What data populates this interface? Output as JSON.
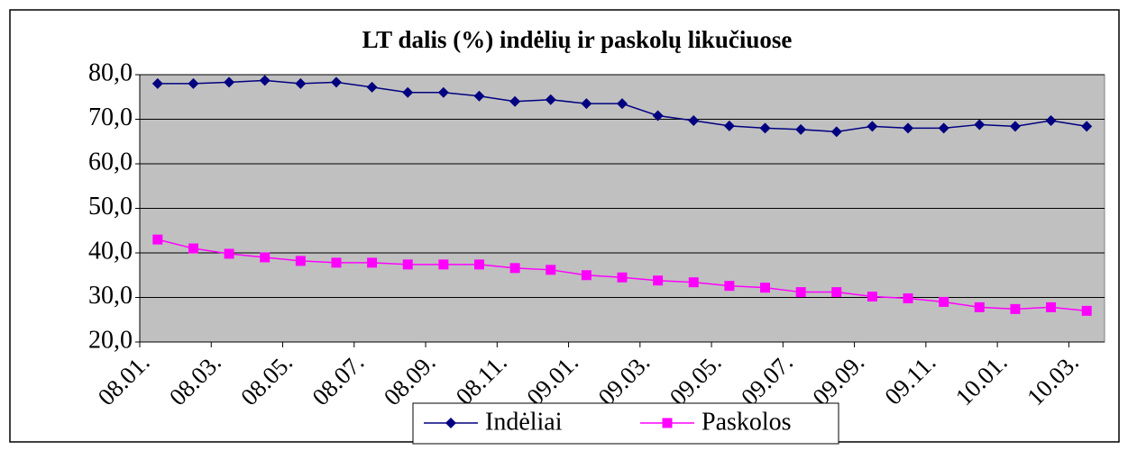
{
  "chart_data": {
    "type": "line",
    "title": "LT dalis (%) indėlių ir paskolų likučiuose",
    "categories": [
      "08.01.",
      null,
      "08.03.",
      null,
      "08.05.",
      null,
      "08.07.",
      null,
      "08.09.",
      null,
      "08.11.",
      null,
      "09.01.",
      null,
      "09.03.",
      null,
      "09.05.",
      null,
      "09.07.",
      null,
      "09.09.",
      null,
      "09.11.",
      null,
      "10.01.",
      null,
      "10.03."
    ],
    "series": [
      {
        "name": "Indėliai",
        "color": "#000080",
        "marker": "diamond",
        "values": [
          78,
          78,
          78.3,
          78.7,
          78,
          78.3,
          77.2,
          76,
          76,
          75.2,
          74,
          74.4,
          73.5,
          73.5,
          70.8,
          69.7,
          68.5,
          68,
          67.7,
          67.2,
          68.4,
          68,
          68,
          68.8,
          68.4,
          69.7,
          68.4
        ]
      },
      {
        "name": "Paskolos",
        "color": "#ff00ff",
        "marker": "square",
        "values": [
          43,
          41,
          39.8,
          39,
          38.2,
          37.8,
          37.8,
          37.4,
          37.4,
          37.4,
          36.6,
          36.2,
          35,
          34.5,
          33.8,
          33.4,
          32.6,
          32.2,
          31.2,
          31.2,
          30.2,
          29.8,
          29,
          27.8,
          27.4,
          27.8,
          27
        ]
      }
    ],
    "ylim": [
      20,
      80
    ],
    "yticks": [
      {
        "value": 20,
        "label": "20,0"
      },
      {
        "value": 30,
        "label": "30,0"
      },
      {
        "value": 40,
        "label": "40,0"
      },
      {
        "value": 50,
        "label": "50,0"
      },
      {
        "value": 60,
        "label": "60,0"
      },
      {
        "value": 70,
        "label": "70,0"
      },
      {
        "value": 80,
        "label": "80,0"
      }
    ],
    "grid": true,
    "legend": "bottom"
  }
}
